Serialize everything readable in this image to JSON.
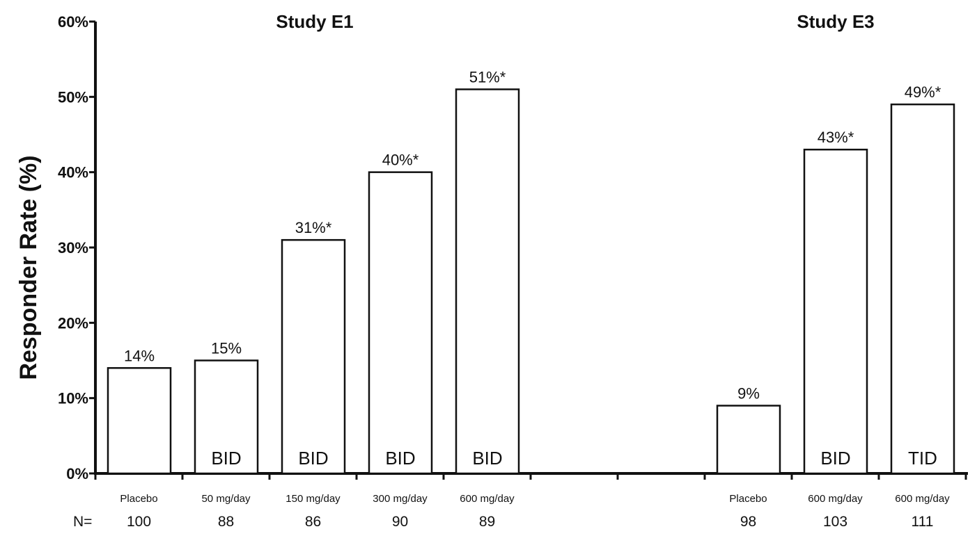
{
  "chart_data": {
    "type": "bar",
    "ylabel": "Responder Rate (%)",
    "ylim": [
      0,
      60
    ],
    "yticks": [
      "0%",
      "10%",
      "20%",
      "30%",
      "40%",
      "50%",
      "60%"
    ],
    "grid": false,
    "n_prefix": "N=",
    "groups": [
      {
        "title": "Study E1",
        "bars": [
          {
            "category": "Placebo",
            "value": 14,
            "label": "14%",
            "inbar": "",
            "n": "100"
          },
          {
            "category": "50 mg/day",
            "value": 15,
            "label": "15%",
            "inbar": "BID",
            "n": "88"
          },
          {
            "category": "150 mg/day",
            "value": 31,
            "label": "31%*",
            "inbar": "BID",
            "n": "86"
          },
          {
            "category": "300 mg/day",
            "value": 40,
            "label": "40%*",
            "inbar": "BID",
            "n": "90"
          },
          {
            "category": "600 mg/day",
            "value": 51,
            "label": "51%*",
            "inbar": "BID",
            "n": "89"
          }
        ]
      },
      {
        "title": "Study E3",
        "bars": [
          {
            "category": "Placebo",
            "value": 9,
            "label": "9%",
            "inbar": "",
            "n": "98"
          },
          {
            "category": "600 mg/day",
            "value": 43,
            "label": "43%*",
            "inbar": "BID",
            "n": "103"
          },
          {
            "category": "600 mg/day",
            "value": 49,
            "label": "49%*",
            "inbar": "TID",
            "n": "111"
          }
        ]
      }
    ]
  }
}
